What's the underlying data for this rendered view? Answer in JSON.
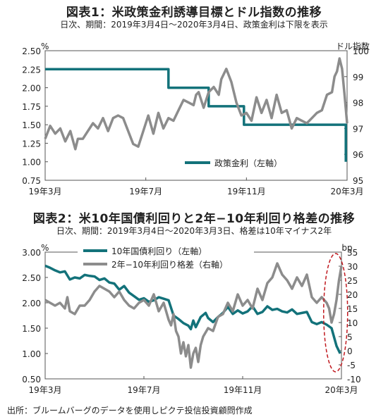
{
  "chart_data": [
    {
      "type": "line",
      "title": "図表1：米政策金利誘導目標とドル指数の推移",
      "subtitle": "日次、期間：2019年3月4日～2020年3月4日、政策金利は下限を表示",
      "left_unit": "%",
      "right_unit": "ドル指数",
      "x_ticks": [
        "19年3月",
        "19年7月",
        "19年11月",
        "20年3月"
      ],
      "left_ticks": [
        "2.50",
        "2.25",
        "2.00",
        "1.75",
        "1.50",
        "1.25",
        "1.00",
        "0.75"
      ],
      "right_ticks": [
        "100",
        "99",
        "98",
        "97",
        "96",
        "95"
      ],
      "ylim_left": [
        0.75,
        2.5
      ],
      "ylim_right": [
        95,
        100
      ],
      "xlim": [
        0,
        12
      ],
      "series": [
        {
          "name": "政策金利（左軸）",
          "axis": "left",
          "color": "#13727a",
          "step": true,
          "points": [
            [
              0,
              2.25
            ],
            [
              4.9,
              2.25
            ],
            [
              4.9,
              2.0
            ],
            [
              6.5,
              2.0
            ],
            [
              6.5,
              1.75
            ],
            [
              7.9,
              1.75
            ],
            [
              7.9,
              1.5
            ],
            [
              11.95,
              1.5
            ],
            [
              11.95,
              1.0
            ]
          ]
        },
        {
          "axis": "right",
          "color": "#8c8c8c",
          "points": [
            [
              0,
              96.6
            ],
            [
              0.2,
              97.1
            ],
            [
              0.4,
              96.8
            ],
            [
              0.6,
              97.0
            ],
            [
              0.8,
              96.5
            ],
            [
              1.0,
              96.9
            ],
            [
              1.2,
              96.2
            ],
            [
              1.3,
              96.6
            ],
            [
              1.5,
              96.6
            ],
            [
              1.7,
              96.9
            ],
            [
              1.9,
              97.2
            ],
            [
              2.1,
              97.0
            ],
            [
              2.3,
              97.4
            ],
            [
              2.5,
              96.9
            ],
            [
              2.7,
              97.4
            ],
            [
              2.9,
              97.5
            ],
            [
              3.1,
              97.4
            ],
            [
              3.3,
              96.9
            ],
            [
              3.5,
              96.4
            ],
            [
              3.7,
              96.3
            ],
            [
              3.9,
              96.9
            ],
            [
              4.1,
              97.5
            ],
            [
              4.3,
              96.8
            ],
            [
              4.5,
              97.6
            ],
            [
              4.7,
              97.0
            ],
            [
              4.9,
              97.4
            ],
            [
              5.1,
              97.3
            ],
            [
              5.3,
              97.7
            ],
            [
              5.5,
              98.1
            ],
            [
              5.7,
              98.0
            ],
            [
              5.9,
              97.9
            ],
            [
              6.0,
              98.3
            ],
            [
              6.1,
              98.4
            ],
            [
              6.3,
              97.8
            ],
            [
              6.5,
              98.4
            ],
            [
              6.7,
              98.6
            ],
            [
              6.9,
              98.3
            ],
            [
              7.0,
              98.9
            ],
            [
              7.2,
              99.3
            ],
            [
              7.4,
              98.8
            ],
            [
              7.6,
              98.0
            ],
            [
              7.8,
              97.5
            ],
            [
              8.0,
              97.6
            ],
            [
              8.2,
              97.3
            ],
            [
              8.4,
              98.2
            ],
            [
              8.6,
              97.6
            ],
            [
              8.8,
              98.1
            ],
            [
              9.0,
              97.4
            ],
            [
              9.2,
              98.3
            ],
            [
              9.4,
              97.6
            ],
            [
              9.6,
              97.7
            ],
            [
              9.8,
              97.0
            ],
            [
              10.0,
              97.4
            ],
            [
              10.2,
              97.3
            ],
            [
              10.4,
              97.2
            ],
            [
              10.6,
              97.4
            ],
            [
              10.8,
              97.6
            ],
            [
              11.0,
              97.7
            ],
            [
              11.2,
              98.3
            ],
            [
              11.4,
              98.4
            ],
            [
              11.5,
              99.0
            ],
            [
              11.6,
              99.2
            ],
            [
              11.7,
              99.7
            ],
            [
              11.8,
              99.3
            ],
            [
              11.9,
              98.3
            ],
            [
              12.0,
              97.2
            ]
          ]
        }
      ]
    },
    {
      "type": "line",
      "title": "図表2：米10年国債利回りと2年−10年利回り格差の推移",
      "subtitle": "日次、期間：2019年3月4日～2020年3月3日、格差は10年マイナス2年",
      "left_unit": "%",
      "right_unit": "bp",
      "x_ticks": [
        "19年3月",
        "19年7月",
        "19年11月",
        "20年3月"
      ],
      "left_ticks": [
        "3.00",
        "2.50",
        "2.00",
        "1.50",
        "1.00",
        "0.50"
      ],
      "right_ticks": [
        "35",
        "30",
        "25",
        "20",
        "15",
        "10",
        "5",
        "0",
        "-5",
        "-10"
      ],
      "ylim_left": [
        0.5,
        3.0
      ],
      "ylim_right": [
        -10,
        35
      ],
      "xlim": [
        0,
        12
      ],
      "series": [
        {
          "name": "10年国債利回り（左軸）",
          "axis": "left",
          "color": "#13727a",
          "points": [
            [
              0,
              2.73
            ],
            [
              0.2,
              2.69
            ],
            [
              0.4,
              2.64
            ],
            [
              0.6,
              2.6
            ],
            [
              0.8,
              2.62
            ],
            [
              1.0,
              2.46
            ],
            [
              1.2,
              2.5
            ],
            [
              1.4,
              2.48
            ],
            [
              1.6,
              2.55
            ],
            [
              1.8,
              2.53
            ],
            [
              2.0,
              2.52
            ],
            [
              2.2,
              2.45
            ],
            [
              2.4,
              2.48
            ],
            [
              2.6,
              2.4
            ],
            [
              2.8,
              2.38
            ],
            [
              3.0,
              2.26
            ],
            [
              3.2,
              2.33
            ],
            [
              3.4,
              2.2
            ],
            [
              3.6,
              2.13
            ],
            [
              3.8,
              2.06
            ],
            [
              4.0,
              2.09
            ],
            [
              4.2,
              2.02
            ],
            [
              4.4,
              2.05
            ],
            [
              4.6,
              2.11
            ],
            [
              4.8,
              2.08
            ],
            [
              5.0,
              2.05
            ],
            [
              5.2,
              1.75
            ],
            [
              5.4,
              1.68
            ],
            [
              5.6,
              1.6
            ],
            [
              5.8,
              1.55
            ],
            [
              5.9,
              1.48
            ],
            [
              6.0,
              1.65
            ],
            [
              6.1,
              1.52
            ],
            [
              6.3,
              1.72
            ],
            [
              6.5,
              1.8
            ],
            [
              6.6,
              1.7
            ],
            [
              6.8,
              1.62
            ],
            [
              7.0,
              1.72
            ],
            [
              7.2,
              1.8
            ],
            [
              7.4,
              1.92
            ],
            [
              7.6,
              1.78
            ],
            [
              7.8,
              1.85
            ],
            [
              8.0,
              1.79
            ],
            [
              8.2,
              1.83
            ],
            [
              8.4,
              1.93
            ],
            [
              8.6,
              1.78
            ],
            [
              8.8,
              1.82
            ],
            [
              9.0,
              1.93
            ],
            [
              9.2,
              1.86
            ],
            [
              9.4,
              1.88
            ],
            [
              9.6,
              1.83
            ],
            [
              9.8,
              1.81
            ],
            [
              10.0,
              1.87
            ],
            [
              10.2,
              1.78
            ],
            [
              10.4,
              1.8
            ],
            [
              10.6,
              1.82
            ],
            [
              10.8,
              1.62
            ],
            [
              11.0,
              1.58
            ],
            [
              11.2,
              1.62
            ],
            [
              11.4,
              1.57
            ],
            [
              11.6,
              1.5
            ],
            [
              11.8,
              1.15
            ],
            [
              11.95,
              1.0
            ]
          ]
        },
        {
          "name": "2年−10年利回り格差（右軸）",
          "axis": "right",
          "color": "#8c8c8c",
          "points": [
            [
              0,
              18
            ],
            [
              0.2,
              17
            ],
            [
              0.4,
              16
            ],
            [
              0.6,
              17
            ],
            [
              0.8,
              15
            ],
            [
              0.9,
              19
            ],
            [
              1.0,
              14
            ],
            [
              1.2,
              13
            ],
            [
              1.4,
              16
            ],
            [
              1.6,
              16
            ],
            [
              1.8,
              18
            ],
            [
              2.0,
              21
            ],
            [
              2.2,
              23
            ],
            [
              2.4,
              22
            ],
            [
              2.6,
              21
            ],
            [
              2.8,
              19
            ],
            [
              3.0,
              21
            ],
            [
              3.2,
              18
            ],
            [
              3.4,
              16
            ],
            [
              3.6,
              15
            ],
            [
              3.8,
              17
            ],
            [
              4.0,
              18
            ],
            [
              4.2,
              16
            ],
            [
              4.4,
              20
            ],
            [
              4.6,
              14
            ],
            [
              4.8,
              17
            ],
            [
              5.0,
              11
            ],
            [
              5.1,
              9
            ],
            [
              5.2,
              13
            ],
            [
              5.3,
              7
            ],
            [
              5.4,
              5
            ],
            [
              5.5,
              -1
            ],
            [
              5.6,
              3
            ],
            [
              5.7,
              -2
            ],
            [
              5.8,
              2
            ],
            [
              5.9,
              -6
            ],
            [
              6.0,
              -1
            ],
            [
              6.1,
              1
            ],
            [
              6.2,
              -4
            ],
            [
              6.3,
              2
            ],
            [
              6.4,
              5
            ],
            [
              6.6,
              8
            ],
            [
              6.8,
              7
            ],
            [
              7.0,
              12
            ],
            [
              7.2,
              13
            ],
            [
              7.4,
              17
            ],
            [
              7.6,
              14
            ],
            [
              7.8,
              20
            ],
            [
              8.0,
              16
            ],
            [
              8.2,
              18
            ],
            [
              8.4,
              15
            ],
            [
              8.6,
              22
            ],
            [
              8.8,
              18
            ],
            [
              9.0,
              24
            ],
            [
              9.2,
              26
            ],
            [
              9.4,
              31
            ],
            [
              9.6,
              27
            ],
            [
              9.8,
              25
            ],
            [
              10.0,
              22
            ],
            [
              10.2,
              26
            ],
            [
              10.4,
              23
            ],
            [
              10.6,
              27
            ],
            [
              10.8,
              19
            ],
            [
              11.0,
              17
            ],
            [
              11.2,
              19
            ],
            [
              11.4,
              17
            ],
            [
              11.5,
              15
            ],
            [
              11.6,
              10
            ],
            [
              11.7,
              13
            ],
            [
              11.8,
              18
            ],
            [
              11.9,
              25
            ],
            [
              12.0,
              30
            ]
          ]
        }
      ]
    }
  ],
  "source": "出所：ブルームバーグのデータを使用しピクテ投信投資顧問作成"
}
